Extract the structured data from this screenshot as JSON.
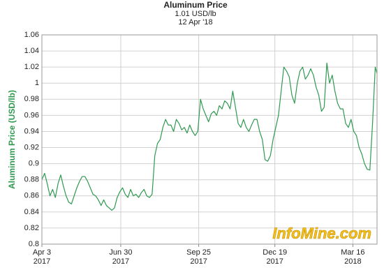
{
  "chart_data": {
    "type": "line",
    "title": "Aluminum Price",
    "subtitle": [
      "1.01 USD/lb",
      "12 Apr '18"
    ],
    "ylabel": "Aluminum Price (USD/lb)",
    "annotation": "InfoMine.com",
    "color": "#2e9a50",
    "grid": true,
    "ylim": [
      0.8,
      1.06
    ],
    "yticks": [
      0.8,
      0.82,
      0.84,
      0.86,
      0.88,
      0.9,
      0.92,
      0.94,
      0.96,
      0.98,
      1,
      1.02,
      1.04,
      1.06
    ],
    "xlim": [
      "2017-04-03",
      "2018-04-12"
    ],
    "xticks": [
      {
        "value": "2017-04-03",
        "label": [
          "Apr 3",
          "2017"
        ]
      },
      {
        "value": "2017-06-30",
        "label": [
          "Jun 30",
          "2017"
        ]
      },
      {
        "value": "2017-09-25",
        "label": [
          "Sep 25",
          "2017"
        ]
      },
      {
        "value": "2017-12-19",
        "label": [
          "Dec 19",
          "2017"
        ]
      },
      {
        "value": "2018-03-16",
        "label": [
          "Mar 16",
          "2018"
        ]
      }
    ],
    "x": [
      "2017-04-03",
      "2017-04-06",
      "2017-04-09",
      "2017-04-12",
      "2017-04-15",
      "2017-04-18",
      "2017-04-21",
      "2017-04-24",
      "2017-04-27",
      "2017-04-30",
      "2017-05-03",
      "2017-05-06",
      "2017-05-09",
      "2017-05-12",
      "2017-05-15",
      "2017-05-18",
      "2017-05-21",
      "2017-05-24",
      "2017-05-27",
      "2017-05-30",
      "2017-06-02",
      "2017-06-05",
      "2017-06-08",
      "2017-06-11",
      "2017-06-14",
      "2017-06-17",
      "2017-06-20",
      "2017-06-23",
      "2017-06-26",
      "2017-06-29",
      "2017-07-02",
      "2017-07-05",
      "2017-07-08",
      "2017-07-11",
      "2017-07-14",
      "2017-07-17",
      "2017-07-20",
      "2017-07-23",
      "2017-07-26",
      "2017-07-29",
      "2017-08-01",
      "2017-08-04",
      "2017-08-07",
      "2017-08-10",
      "2017-08-13",
      "2017-08-16",
      "2017-08-19",
      "2017-08-22",
      "2017-08-25",
      "2017-08-28",
      "2017-08-31",
      "2017-09-03",
      "2017-09-06",
      "2017-09-09",
      "2017-09-12",
      "2017-09-15",
      "2017-09-18",
      "2017-09-21",
      "2017-09-24",
      "2017-09-27",
      "2017-09-30",
      "2017-10-03",
      "2017-10-06",
      "2017-10-09",
      "2017-10-12",
      "2017-10-15",
      "2017-10-18",
      "2017-10-21",
      "2017-10-24",
      "2017-10-27",
      "2017-10-30",
      "2017-11-02",
      "2017-11-05",
      "2017-11-08",
      "2017-11-11",
      "2017-11-14",
      "2017-11-17",
      "2017-11-20",
      "2017-11-23",
      "2017-11-26",
      "2017-11-29",
      "2017-12-02",
      "2017-12-05",
      "2017-12-08",
      "2017-12-11",
      "2017-12-14",
      "2017-12-17",
      "2017-12-20",
      "2017-12-23",
      "2017-12-26",
      "2017-12-29",
      "2018-01-01",
      "2018-01-04",
      "2018-01-07",
      "2018-01-10",
      "2018-01-13",
      "2018-01-16",
      "2018-01-19",
      "2018-01-22",
      "2018-01-25",
      "2018-01-28",
      "2018-01-31",
      "2018-02-03",
      "2018-02-06",
      "2018-02-09",
      "2018-02-12",
      "2018-02-15",
      "2018-02-18",
      "2018-02-21",
      "2018-02-24",
      "2018-02-27",
      "2018-03-02",
      "2018-03-05",
      "2018-03-08",
      "2018-03-11",
      "2018-03-14",
      "2018-03-17",
      "2018-03-20",
      "2018-03-23",
      "2018-03-26",
      "2018-03-29",
      "2018-04-01",
      "2018-04-04",
      "2018-04-07",
      "2018-04-10",
      "2018-04-12"
    ],
    "values": [
      0.88,
      0.888,
      0.875,
      0.86,
      0.868,
      0.858,
      0.875,
      0.886,
      0.872,
      0.86,
      0.852,
      0.85,
      0.86,
      0.87,
      0.878,
      0.884,
      0.884,
      0.878,
      0.87,
      0.862,
      0.86,
      0.855,
      0.848,
      0.855,
      0.848,
      0.845,
      0.842,
      0.845,
      0.858,
      0.865,
      0.87,
      0.862,
      0.858,
      0.868,
      0.86,
      0.862,
      0.858,
      0.864,
      0.868,
      0.86,
      0.858,
      0.862,
      0.91,
      0.925,
      0.93,
      0.945,
      0.955,
      0.948,
      0.948,
      0.94,
      0.955,
      0.95,
      0.942,
      0.945,
      0.938,
      0.948,
      0.94,
      0.935,
      0.94,
      0.98,
      0.968,
      0.96,
      0.952,
      0.962,
      0.965,
      0.96,
      0.972,
      0.968,
      0.978,
      0.975,
      0.968,
      0.99,
      0.97,
      0.95,
      0.945,
      0.955,
      0.945,
      0.94,
      0.948,
      0.955,
      0.955,
      0.94,
      0.93,
      0.905,
      0.903,
      0.91,
      0.93,
      0.945,
      0.96,
      0.99,
      1.02,
      1.015,
      1.008,
      0.985,
      0.975,
      1,
      1.015,
      1.02,
      1.005,
      1.01,
      1.018,
      1.01,
      0.995,
      0.985,
      0.965,
      0.97,
      1.025,
      1,
      1.01,
      0.99,
      0.975,
      0.968,
      0.968,
      0.95,
      0.945,
      0.955,
      0.94,
      0.935,
      0.92,
      0.912,
      0.9,
      0.893,
      0.892,
      0.95,
      1.02,
      1.012
    ]
  }
}
